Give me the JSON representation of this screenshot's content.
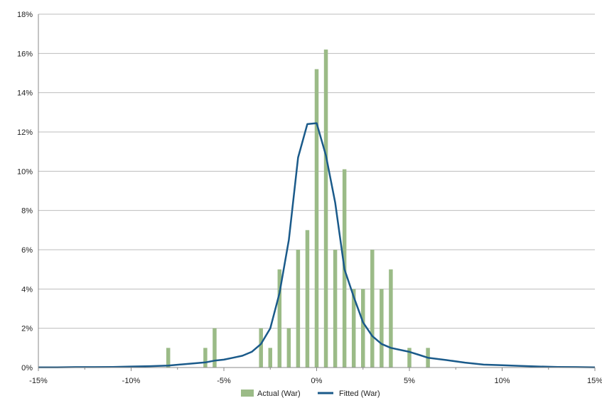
{
  "chart_data": {
    "type": "bar",
    "title": "",
    "xlabel": "",
    "ylabel": "",
    "xlim": [
      -15,
      15
    ],
    "ylim": [
      0,
      18
    ],
    "grid": true,
    "legend_position": "bottom",
    "x_ticks": [
      -15,
      -10,
      -5,
      0,
      5,
      10,
      15
    ],
    "x_tick_labels": [
      "-15%",
      "-10%",
      "-5%",
      "0%",
      "5%",
      "10%",
      "15%"
    ],
    "y_ticks": [
      0,
      2,
      4,
      6,
      8,
      10,
      12,
      14,
      16,
      18
    ],
    "y_tick_labels": [
      "0%",
      "2%",
      "4%",
      "6%",
      "8%",
      "10%",
      "12%",
      "14%",
      "16%",
      "18%"
    ],
    "series": [
      {
        "name": "Actual (War)",
        "type": "bar",
        "color": "#9bbb87",
        "x": [
          -8,
          -6,
          -5.5,
          -3,
          -2.5,
          -2,
          -1.5,
          -1,
          -0.5,
          0,
          0.5,
          1,
          1.5,
          2,
          2.5,
          3,
          3.5,
          4,
          5,
          6
        ],
        "y": [
          1,
          1,
          2,
          2,
          1,
          5,
          2,
          6,
          7,
          15.2,
          16.2,
          6,
          10.1,
          4,
          4,
          6,
          4,
          5,
          1,
          1
        ]
      },
      {
        "name": "Fitted (War)",
        "type": "line",
        "color": "#1a5a8a",
        "x": [
          -15,
          -14,
          -13,
          -12,
          -11,
          -10,
          -9,
          -8,
          -7,
          -6,
          -5.5,
          -5,
          -4.5,
          -4,
          -3.5,
          -3,
          -2.5,
          -2,
          -1.5,
          -1,
          -0.5,
          0,
          0.5,
          1,
          1.5,
          2,
          2.5,
          3,
          3.5,
          4,
          4.5,
          5,
          5.5,
          6,
          7,
          8,
          9,
          10,
          11,
          12,
          13,
          14,
          15
        ],
        "y": [
          0.01,
          0.01,
          0.02,
          0.02,
          0.03,
          0.05,
          0.07,
          0.1,
          0.18,
          0.26,
          0.35,
          0.4,
          0.5,
          0.6,
          0.8,
          1.2,
          2.0,
          3.8,
          6.5,
          10.7,
          12.4,
          12.45,
          10.8,
          8.4,
          5.0,
          3.6,
          2.3,
          1.6,
          1.2,
          1.0,
          0.9,
          0.8,
          0.65,
          0.5,
          0.38,
          0.25,
          0.15,
          0.12,
          0.08,
          0.05,
          0.03,
          0.02,
          0.01
        ]
      }
    ]
  }
}
